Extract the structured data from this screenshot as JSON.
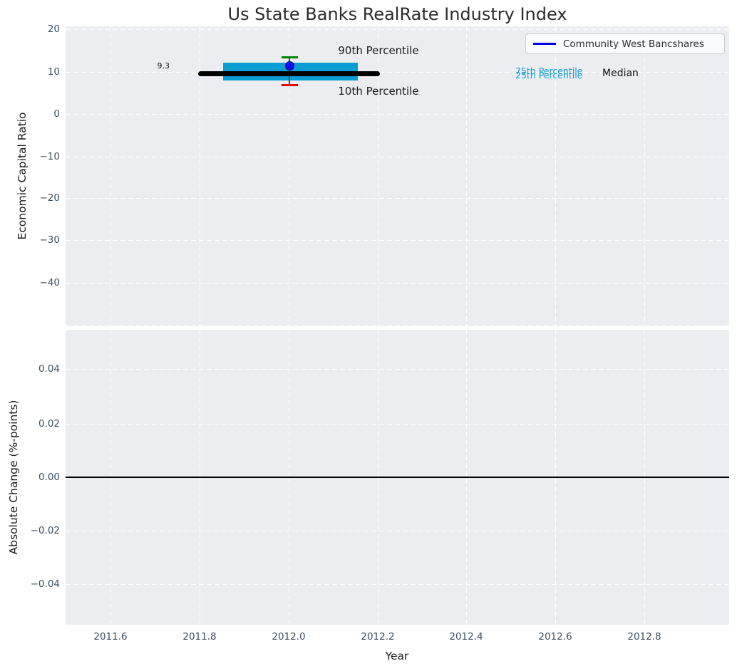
{
  "title": "Us State Banks RealRate Industry Index",
  "legend": {
    "label": "Community West Bancshares",
    "line_color": "#0000e6"
  },
  "top_plot": {
    "ylabel": "Economic Capital Ratio",
    "yticks": [
      "20",
      "10",
      "0",
      "−10",
      "−20",
      "−30",
      "−40"
    ],
    "annotations": {
      "p90_label": "90th Percentile",
      "p10_label": "10th Percentile",
      "p75_label": "75th Percentile",
      "p25_label": "25th Percentile",
      "median_label": "Median",
      "median_value": "9.3"
    },
    "colors": {
      "box": "#0a9dd3",
      "median_line": "#000000",
      "p90_cap": "#008000",
      "p10_cap": "#f00000",
      "company_marker": "#0d0dea"
    }
  },
  "bottom_plot": {
    "ylabel": "Absolute Change (%-points)",
    "yticks": [
      "0.04",
      "0.02",
      "0.00",
      "−0.02",
      "−0.04"
    ],
    "xlabel": "Year",
    "xticks": [
      "2011.6",
      "2011.8",
      "2012.0",
      "2012.2",
      "2012.4",
      "2012.6",
      "2012.8"
    ]
  },
  "chart_data": [
    {
      "type": "line",
      "title": "Us State Banks RealRate Industry Index",
      "ylabel": "Economic Capital Ratio",
      "xlim": [
        2011.5,
        2013.0
      ],
      "ylim": [
        -50.4,
        20.7
      ],
      "yticks": [
        20,
        10,
        0,
        -10,
        -20,
        -30,
        -40
      ],
      "xticks": [
        2011.6,
        2011.8,
        2012.0,
        2012.2,
        2012.4,
        2012.6,
        2012.8
      ],
      "grid": true,
      "legend_position": "upper right",
      "series": [
        {
          "name": "Community West Bancshares",
          "x": [
            2012.0
          ],
          "y": [
            11.3
          ],
          "color": "blue",
          "marker": "circle"
        }
      ],
      "industry_distribution": {
        "x_center": 2012.0,
        "median": 9.3,
        "median_line_xspan": [
          2011.8,
          2012.2
        ],
        "p25": 7.7,
        "p75": 12.1,
        "box_xspan": [
          2011.85,
          2012.15
        ],
        "p10": 6.8,
        "p90": 13.5
      },
      "annotations": [
        "90th Percentile",
        "10th Percentile",
        "75th Percentile",
        "25th Percentile",
        "Median",
        "9.3"
      ]
    },
    {
      "type": "line",
      "ylabel": "Absolute Change (%-points)",
      "xlabel": "Year",
      "xlim": [
        2011.5,
        2013.0
      ],
      "ylim": [
        -0.055,
        0.055
      ],
      "yticks": [
        0.04,
        0.02,
        0.0,
        -0.02,
        -0.04
      ],
      "xticks": [
        2011.6,
        2011.8,
        2012.0,
        2012.2,
        2012.4,
        2012.6,
        2012.8
      ],
      "grid": true,
      "zero_line": 0.0,
      "series": []
    }
  ]
}
